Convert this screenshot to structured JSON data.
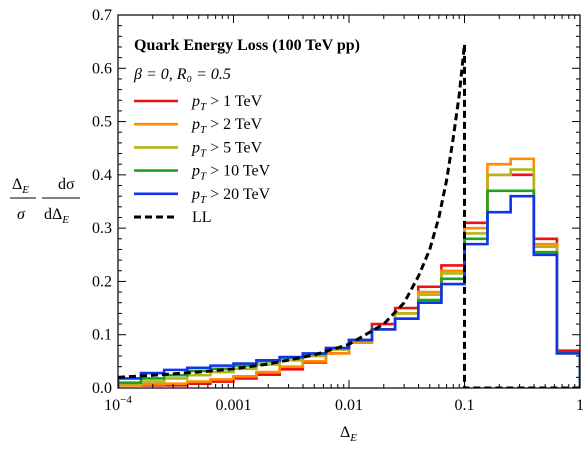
{
  "chart_data": {
    "type": "line",
    "title": "Quark Energy Loss (100 TeV pp)",
    "subtitle": "β = 0, R₀ = 0.5",
    "xlabel": "Δ",
    "xlabel_sub": "E",
    "ylabel_parts": {
      "num1": "Δ",
      "num1_sub": "E",
      "den1": "σ",
      "num2": "dσ",
      "den2": "dΔ",
      "den2_sub": "E"
    },
    "x_scale": "log",
    "xlim": [
      0.0001,
      1
    ],
    "ylim": [
      0,
      0.7
    ],
    "grid": false,
    "legend_position": "top-left",
    "x_ticks": [
      {
        "value": 0.0001,
        "label": "10",
        "sup": "−4"
      },
      {
        "value": 0.001,
        "label": "0.001"
      },
      {
        "value": 0.01,
        "label": "0.01"
      },
      {
        "value": 0.1,
        "label": "0.1"
      },
      {
        "value": 1,
        "label": "1"
      }
    ],
    "y_ticks": [
      {
        "value": 0,
        "label": "0.0"
      },
      {
        "value": 0.1,
        "label": "0.1"
      },
      {
        "value": 0.2,
        "label": "0.2"
      },
      {
        "value": 0.3,
        "label": "0.3"
      },
      {
        "value": 0.4,
        "label": "0.4"
      },
      {
        "value": 0.5,
        "label": "0.5"
      },
      {
        "value": 0.6,
        "label": "0.6"
      },
      {
        "value": 0.7,
        "label": "0.7"
      }
    ],
    "bin_edges": [
      0.0001,
      0.000158,
      0.000251,
      0.000398,
      0.000631,
      0.001,
      0.00158,
      0.00251,
      0.00398,
      0.00631,
      0.01,
      0.0158,
      0.0251,
      0.0398,
      0.0631,
      0.1,
      0.158,
      0.251,
      0.398,
      0.631,
      1.0
    ],
    "series": [
      {
        "name": "p_T > 1 TeV",
        "label_main": "p",
        "label_sub": "T",
        "label_rest": " > 1 TeV",
        "color": "#ee1111",
        "values": [
          0.005,
          0.005,
          0.005,
          0.008,
          0.012,
          0.018,
          0.025,
          0.035,
          0.048,
          0.065,
          0.09,
          0.12,
          0.15,
          0.19,
          0.23,
          0.31,
          0.4,
          0.4,
          0.28,
          0.07
        ]
      },
      {
        "name": "p_T > 2 TeV",
        "label_main": "p",
        "label_sub": "T",
        "label_rest": " > 2 TeV",
        "color": "#ff8c00",
        "values": [
          0.005,
          0.007,
          0.008,
          0.012,
          0.016,
          0.022,
          0.03,
          0.04,
          0.05,
          0.065,
          0.085,
          0.11,
          0.14,
          0.18,
          0.22,
          0.3,
          0.42,
          0.43,
          0.27,
          0.065
        ]
      },
      {
        "name": "p_T > 5 TeV",
        "label_main": "p",
        "label_sub": "T",
        "label_rest": " > 5 TeV",
        "color": "#b5b519",
        "values": [
          0.008,
          0.012,
          0.018,
          0.024,
          0.03,
          0.036,
          0.044,
          0.052,
          0.06,
          0.072,
          0.088,
          0.11,
          0.14,
          0.175,
          0.215,
          0.29,
          0.4,
          0.41,
          0.265,
          0.065
        ]
      },
      {
        "name": "p_T > 10 TeV",
        "label_main": "p",
        "label_sub": "T",
        "label_rest": " > 10 TeV",
        "color": "#1fa31f",
        "values": [
          0.01,
          0.018,
          0.024,
          0.032,
          0.036,
          0.042,
          0.05,
          0.057,
          0.064,
          0.075,
          0.09,
          0.11,
          0.13,
          0.165,
          0.205,
          0.28,
          0.37,
          0.37,
          0.255,
          0.065
        ]
      },
      {
        "name": "p_T > 20 TeV",
        "label_main": "p",
        "label_sub": "T",
        "label_rest": " > 20 TeV",
        "color": "#1133ee",
        "values": [
          0.018,
          0.028,
          0.034,
          0.038,
          0.042,
          0.046,
          0.052,
          0.058,
          0.065,
          0.075,
          0.09,
          0.11,
          0.13,
          0.16,
          0.195,
          0.27,
          0.33,
          0.36,
          0.25,
          0.065
        ]
      },
      {
        "name": "LL",
        "label_main": "LL",
        "label_sub": "",
        "label_rest": "",
        "color": "#000000",
        "dashed": true,
        "x": [
          0.0001,
          0.0002,
          0.0005,
          0.001,
          0.002,
          0.005,
          0.01,
          0.02,
          0.03,
          0.04,
          0.05,
          0.06,
          0.07,
          0.08,
          0.09,
          0.1,
          0.1,
          1.0
        ],
        "y": [
          0.02,
          0.024,
          0.03,
          0.036,
          0.045,
          0.062,
          0.082,
          0.12,
          0.16,
          0.21,
          0.26,
          0.32,
          0.39,
          0.47,
          0.55,
          0.645,
          0.0,
          0.0
        ]
      }
    ]
  }
}
